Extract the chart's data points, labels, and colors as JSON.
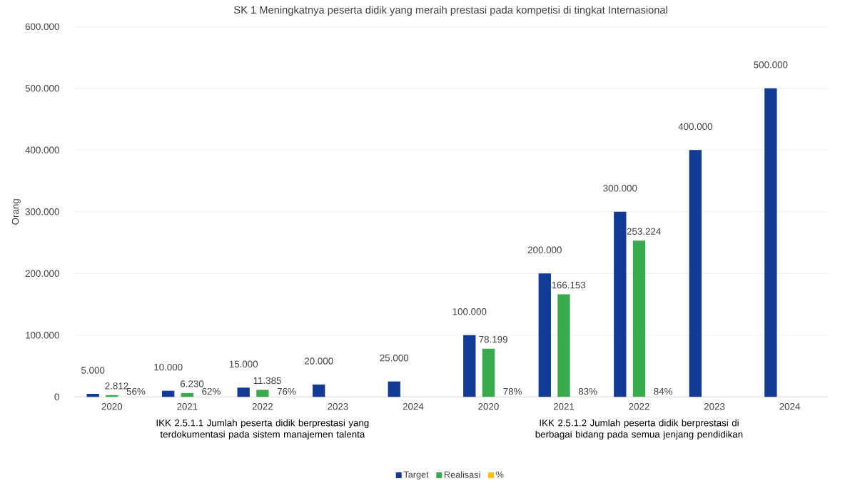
{
  "chart_data": {
    "type": "bar",
    "title": "SK 1 Meningkatnya peserta didik yang meraih prestasi pada kompetisi di tingkat Internasional",
    "ylabel": "Orang",
    "categories": [
      "2020",
      "2021",
      "2022",
      "2023",
      "2024",
      "2020",
      "2021",
      "2022",
      "2023",
      "2024"
    ],
    "annotations": [
      "IKK 2.5.1.1 Jumlah peserta didik berprestasi yang terdokumentasi pada sistem manajemen talenta",
      "IKK 2.5.1.2 Jumlah peserta didik berprestasi di berbagai bidang pada semua jenjang pendidikan"
    ],
    "series": [
      {
        "name": "Target",
        "color": "#133a94",
        "values": [
          5000,
          10000,
          15000,
          20000,
          25000,
          100000,
          200000,
          300000,
          400000,
          500000
        ],
        "value_labels": [
          "5.000",
          "10.000",
          "15.000",
          "20.000",
          "25.000",
          "100.000",
          "200.000",
          "300.000",
          "400.000",
          "500.000"
        ]
      },
      {
        "name": "Realisasi",
        "color": "#3aaa4f",
        "values": [
          2812,
          6230,
          11385,
          null,
          null,
          78199,
          166153,
          253224,
          null,
          null
        ],
        "value_labels": [
          "2.812",
          "6.230",
          "11.385",
          null,
          null,
          "78.199",
          "166.153",
          "253.224",
          null,
          null
        ]
      },
      {
        "name": "%",
        "color": "#ffc000",
        "values": [
          56,
          62,
          76,
          null,
          null,
          78,
          83,
          84,
          null,
          null
        ],
        "value_labels": [
          "56%",
          "62%",
          "76%",
          null,
          null,
          "78%",
          "83%",
          "84%",
          null,
          null
        ]
      }
    ],
    "ylim": [
      0,
      600000
    ],
    "yticks": [
      0,
      {
        "value": 100000,
        "label": "100.000"
      },
      {
        "value": 200000,
        "label": "200.000"
      },
      {
        "value": 300000,
        "label": "300.000"
      },
      {
        "value": 400000,
        "label": "400.000"
      },
      {
        "value": 500000,
        "label": "500.000"
      },
      {
        "value": 600000,
        "label": "600.000"
      }
    ],
    "grid": "y",
    "legend": "bottom"
  }
}
